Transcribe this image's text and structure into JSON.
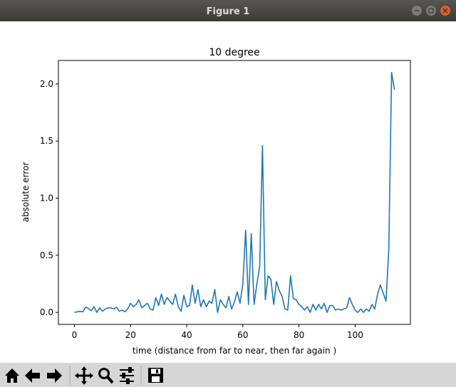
{
  "window": {
    "title": "Figure 1"
  },
  "chart_data": {
    "type": "line",
    "title": "10 degree",
    "x_label": "time (distance from far to near, then far again )",
    "y_label": "absolute error",
    "color": "#1f77b4",
    "x": [
      0,
      1,
      2,
      3,
      4,
      5,
      6,
      7,
      8,
      9,
      10,
      11,
      12,
      13,
      14,
      15,
      16,
      17,
      18,
      19,
      20,
      21,
      22,
      23,
      24,
      25,
      26,
      27,
      28,
      29,
      30,
      31,
      32,
      33,
      34,
      35,
      36,
      37,
      38,
      39,
      40,
      41,
      42,
      43,
      44,
      45,
      46,
      47,
      48,
      49,
      50,
      51,
      52,
      53,
      54,
      55,
      56,
      57,
      58,
      59,
      60,
      61,
      62,
      63,
      64,
      65,
      66,
      67,
      68,
      69,
      70,
      71,
      72,
      73,
      74,
      75,
      76,
      77,
      78,
      79,
      80,
      81,
      82,
      83,
      84,
      85,
      86,
      87,
      88,
      89,
      90,
      91,
      92,
      93,
      94,
      95,
      96,
      97,
      98,
      99,
      100,
      101,
      102,
      103,
      104,
      105,
      106,
      107,
      108,
      109,
      110,
      111,
      112,
      113,
      114
    ],
    "values": [
      0.0,
      0.005,
      0.01,
      0.005,
      0.045,
      0.035,
      0.015,
      0.05,
      0.0,
      0.04,
      0.01,
      0.03,
      0.04,
      0.04,
      0.03,
      0.045,
      0.01,
      0.02,
      0.005,
      0.03,
      0.08,
      0.05,
      0.07,
      0.11,
      0.04,
      0.06,
      0.08,
      0.03,
      0.02,
      0.13,
      0.06,
      0.16,
      0.07,
      0.13,
      0.1,
      0.07,
      0.16,
      0.05,
      0.01,
      0.15,
      0.05,
      0.06,
      0.24,
      0.08,
      0.2,
      0.05,
      0.11,
      0.05,
      0.1,
      0.08,
      0.2,
      0.0,
      0.11,
      0.07,
      0.04,
      0.14,
      0.03,
      0.09,
      0.18,
      0.08,
      0.25,
      0.72,
      0.07,
      0.69,
      0.07,
      0.25,
      0.4,
      1.46,
      0.11,
      0.32,
      0.29,
      0.07,
      0.27,
      0.19,
      0.14,
      0.03,
      0.02,
      0.32,
      0.12,
      0.11,
      0.07,
      0.05,
      0.02,
      0.05,
      0.0,
      0.07,
      0.02,
      0.07,
      0.03,
      0.08,
      0.0,
      0.06,
      0.06,
      0.02,
      0.03,
      0.02,
      0.03,
      0.04,
      0.13,
      0.07,
      0.02,
      0.0,
      0.03,
      0.0,
      0.03,
      0.01,
      0.07,
      0.03,
      0.16,
      0.24,
      0.17,
      0.1,
      0.55,
      2.1,
      1.95
    ],
    "xlim": [
      -5.7,
      119.7
    ],
    "xticks": [
      0,
      20,
      40,
      60,
      80,
      100
    ],
    "ylim": [
      -0.105,
      2.205
    ],
    "yticks": [
      {
        "value": 0,
        "label": "0.0"
      },
      {
        "value": 0.5,
        "label": "0.5"
      },
      {
        "value": 1,
        "label": "1.0"
      },
      {
        "value": 1.5,
        "label": "1.5"
      },
      {
        "value": 2,
        "label": "2.0"
      }
    ]
  }
}
